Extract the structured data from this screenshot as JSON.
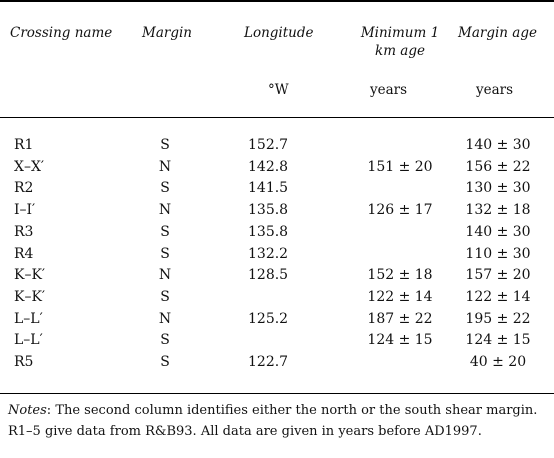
{
  "table": {
    "headers": [
      {
        "key": "name",
        "label": "Crossing name"
      },
      {
        "key": "margin",
        "label": "Margin"
      },
      {
        "key": "longitude",
        "label": "Longitude"
      },
      {
        "key": "min_age",
        "label": "Minimum 1 km age"
      },
      {
        "key": "margin_age",
        "label": "Margin age"
      }
    ],
    "units": {
      "longitude": "°W",
      "min_age": "years",
      "margin_age": "years"
    },
    "rows": [
      {
        "name": "R1",
        "margin": "S",
        "longitude": "152.7",
        "min_age": "",
        "margin_age": "140 ± 30"
      },
      {
        "name": "X–X′",
        "margin": "N",
        "longitude": "142.8",
        "min_age": "151 ± 20",
        "margin_age": "156 ± 22"
      },
      {
        "name": "R2",
        "margin": "S",
        "longitude": "141.5",
        "min_age": "",
        "margin_age": "130 ± 30"
      },
      {
        "name": "I–I′",
        "margin": "N",
        "longitude": "135.8",
        "min_age": "126 ± 17",
        "margin_age": "132 ± 18"
      },
      {
        "name": "R3",
        "margin": "S",
        "longitude": "135.8",
        "min_age": "",
        "margin_age": "140 ± 30"
      },
      {
        "name": "R4",
        "margin": "S",
        "longitude": "132.2",
        "min_age": "",
        "margin_age": "110 ± 30"
      },
      {
        "name": "K–K′",
        "margin": "N",
        "longitude": "128.5",
        "min_age": "152 ± 18",
        "margin_age": "157 ± 20"
      },
      {
        "name": "K–K′",
        "margin": "S",
        "longitude": "",
        "min_age": "122 ± 14",
        "margin_age": "122 ± 14"
      },
      {
        "name": "L–L′",
        "margin": "N",
        "longitude": "125.2",
        "min_age": "187 ± 22",
        "margin_age": "195 ± 22"
      },
      {
        "name": "L–L′",
        "margin": "S",
        "longitude": "",
        "min_age": "124 ± 15",
        "margin_age": "124 ± 15"
      },
      {
        "name": "R5",
        "margin": "S",
        "longitude": "122.7",
        "min_age": "",
        "margin_age": "40 ± 20"
      }
    ]
  },
  "notes": {
    "label": "Notes",
    "line1": "The second column identifies either the north or the south shear margin.",
    "line2": "R1–5 give data from R&B93. All data are given in years before AD1997."
  }
}
